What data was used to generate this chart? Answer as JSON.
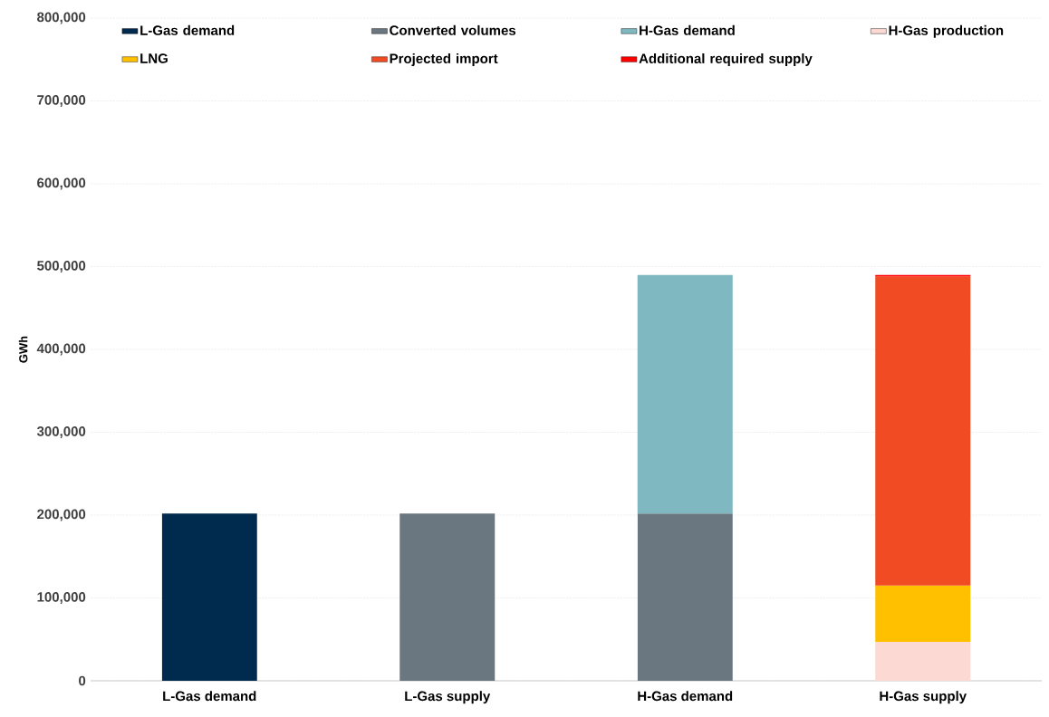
{
  "chart_data": {
    "type": "bar",
    "stacked": true,
    "ylabel": "GWh",
    "categories": [
      "L-Gas demand",
      "L-Gas supply",
      "H-Gas demand",
      "H-Gas supply"
    ],
    "series": [
      {
        "name": "L-Gas demand",
        "color": "#002b4f",
        "values": [
          202000,
          null,
          null,
          null
        ]
      },
      {
        "name": "Converted volumes",
        "color": "#6b7780",
        "values": [
          null,
          202000,
          202000,
          null
        ]
      },
      {
        "name": "H-Gas demand",
        "color": "#7fb8c0",
        "values": [
          null,
          null,
          288000,
          null
        ]
      },
      {
        "name": "H-Gas production",
        "color": "#fcd9d2",
        "values": [
          null,
          null,
          null,
          47000
        ]
      },
      {
        "name": "LNG",
        "color": "#ffc000",
        "values": [
          null,
          null,
          null,
          68000
        ]
      },
      {
        "name": "Projected import",
        "color": "#f04b23",
        "values": [
          null,
          null,
          null,
          373000
        ]
      },
      {
        "name": "Additional required supply",
        "color": "#ff0000",
        "values": [
          null,
          null,
          null,
          2000
        ]
      }
    ],
    "ylim": [
      0,
      800000
    ],
    "yticks": [
      {
        "value": 0,
        "label": "0"
      },
      {
        "value": 100000,
        "label": "100,000"
      },
      {
        "value": 200000,
        "label": "200,000"
      },
      {
        "value": 300000,
        "label": "300,000"
      },
      {
        "value": 400000,
        "label": "400,000"
      },
      {
        "value": 500000,
        "label": "500,000"
      },
      {
        "value": 600000,
        "label": "600,000"
      },
      {
        "value": 700000,
        "label": "700,000"
      },
      {
        "value": 800000,
        "label": "800,000"
      }
    ],
    "grid": "y",
    "legend": "top"
  }
}
